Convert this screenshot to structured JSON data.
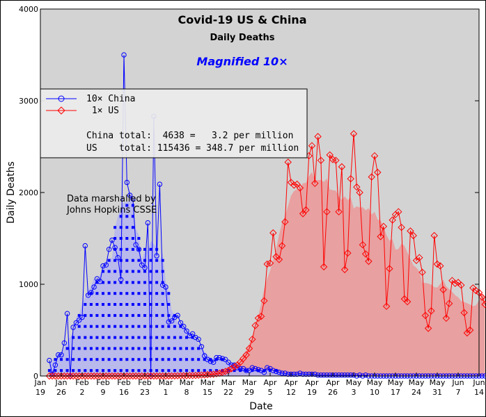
{
  "chart_data": {
    "type": "line",
    "title": "Covid-19 US & China",
    "subtitle": "Daily Deaths",
    "annotation_magnified": "Magnified 10×",
    "annotation_source": [
      "Data marshalled by",
      "Johns Hopkins CSSE"
    ],
    "xlabel": "Date",
    "ylabel": "Daily Deaths",
    "ylim": [
      0,
      4000
    ],
    "yticks": [
      0,
      1000,
      2000,
      3000,
      4000
    ],
    "xlim": [
      0,
      147
    ],
    "x_start_label": "2020-01-19",
    "xticks": [
      {
        "x": 0,
        "month": "Jan",
        "day": "19"
      },
      {
        "x": 7,
        "month": "Jan",
        "day": "26"
      },
      {
        "x": 14,
        "month": "Feb",
        "day": "2"
      },
      {
        "x": 21,
        "month": "Feb",
        "day": "9"
      },
      {
        "x": 28,
        "month": "Feb",
        "day": "16"
      },
      {
        "x": 35,
        "month": "Feb",
        "day": "23"
      },
      {
        "x": 42,
        "month": "Mar",
        "day": "1"
      },
      {
        "x": 49,
        "month": "Mar",
        "day": "8"
      },
      {
        "x": 56,
        "month": "Mar",
        "day": "15"
      },
      {
        "x": 63,
        "month": "Mar",
        "day": "22"
      },
      {
        "x": 70,
        "month": "Mar",
        "day": "29"
      },
      {
        "x": 77,
        "month": "Apr",
        "day": "5"
      },
      {
        "x": 84,
        "month": "Apr",
        "day": "12"
      },
      {
        "x": 91,
        "month": "Apr",
        "day": "19"
      },
      {
        "x": 98,
        "month": "Apr",
        "day": "26"
      },
      {
        "x": 105,
        "month": "May",
        "day": "3"
      },
      {
        "x": 112,
        "month": "May",
        "day": "10"
      },
      {
        "x": 119,
        "month": "May",
        "day": "17"
      },
      {
        "x": 126,
        "month": "May",
        "day": "24"
      },
      {
        "x": 133,
        "month": "May",
        "day": "31"
      },
      {
        "x": 140,
        "month": "Jun",
        "day": "7"
      },
      {
        "x": 147,
        "month": "Jun",
        "day": "14"
      }
    ],
    "legend": {
      "placement": "top-left",
      "entries": [
        {
          "label": "10× China",
          "color": "#0000ff",
          "marker": "circle"
        },
        {
          "label": " 1× US",
          "color": "#ff0000",
          "marker": "diamond"
        }
      ],
      "totals": [
        "China total:  4638 =   3.2 per million",
        "US    total: 115436 = 348.7 per million"
      ]
    },
    "colors": {
      "plot_background": "#d3d3d3",
      "china": "#0000ff",
      "china_fill": "#b4b4ee",
      "us": "#ff0000",
      "us_fill": "#e8a0a0"
    },
    "series": [
      {
        "name": "10× China",
        "x_start": 3,
        "values": [
          170,
          20,
          120,
          230,
          230,
          360,
          680,
          0,
          530,
          580,
          610,
          640,
          1420,
          880,
          910,
          970,
          1060,
          1030,
          1200,
          1210,
          1380,
          1480,
          1400,
          1290,
          1050,
          3500,
          2110,
          1970,
          1930,
          1430,
          1380,
          1210,
          1180,
          1670,
          0,
          2830,
          1310,
          2090,
          990,
          970,
          590,
          600,
          640,
          660,
          580,
          540,
          490,
          440,
          460,
          420,
          400,
          320,
          220,
          180,
          160,
          150,
          200,
          200,
          190,
          180,
          150,
          120,
          120,
          90,
          80,
          80,
          60,
          60,
          90,
          80,
          70,
          60,
          40,
          90,
          80,
          60,
          50,
          40,
          30,
          30,
          20,
          20,
          20,
          20,
          30,
          20,
          20,
          20,
          20,
          20,
          10,
          10,
          10,
          10,
          10,
          10,
          10,
          10,
          10,
          10,
          10,
          10,
          10,
          0,
          10,
          0,
          10,
          0,
          0,
          0,
          0,
          0,
          0,
          0,
          0,
          0,
          0,
          0,
          0,
          0,
          0,
          0,
          0,
          0,
          0,
          0,
          0,
          0,
          0,
          0,
          0,
          0,
          0,
          0,
          0,
          0,
          0,
          0,
          0,
          0,
          0,
          0,
          0,
          0,
          0,
          0,
          0
        ]
      },
      {
        "name": " 1× US",
        "x_start": 3,
        "values": [
          0,
          0,
          0,
          0,
          0,
          0,
          0,
          0,
          0,
          0,
          0,
          0,
          0,
          0,
          0,
          0,
          0,
          0,
          0,
          0,
          0,
          0,
          0,
          0,
          0,
          0,
          0,
          0,
          0,
          0,
          0,
          0,
          0,
          0,
          0,
          0,
          0,
          0,
          0,
          0,
          1,
          1,
          1,
          2,
          2,
          3,
          4,
          5,
          5,
          6,
          8,
          10,
          12,
          15,
          18,
          20,
          25,
          30,
          40,
          50,
          60,
          80,
          100,
          120,
          150,
          190,
          230,
          300,
          400,
          550,
          630,
          650,
          820,
          1220,
          1230,
          1560,
          1300,
          1270,
          1420,
          1680,
          2330,
          2110,
          2080,
          2090,
          2050,
          1770,
          1810,
          2400,
          2510,
          2100,
          2610,
          2350,
          1190,
          1790,
          2410,
          2360,
          2350,
          1790,
          2280,
          1160,
          1340,
          2150,
          2640,
          2060,
          2000,
          1430,
          1330,
          1250,
          2170,
          2400,
          2220,
          1520,
          1630,
          760,
          1170,
          1700,
          1760,
          1790,
          1620,
          840,
          810,
          1580,
          1530,
          1260,
          1290,
          1130,
          660,
          520,
          710,
          1530,
          1220,
          1200,
          940,
          630,
          790,
          1040,
          1010,
          1020,
          990,
          690,
          470,
          500,
          960,
          930,
          910,
          860,
          780
        ]
      }
    ]
  }
}
